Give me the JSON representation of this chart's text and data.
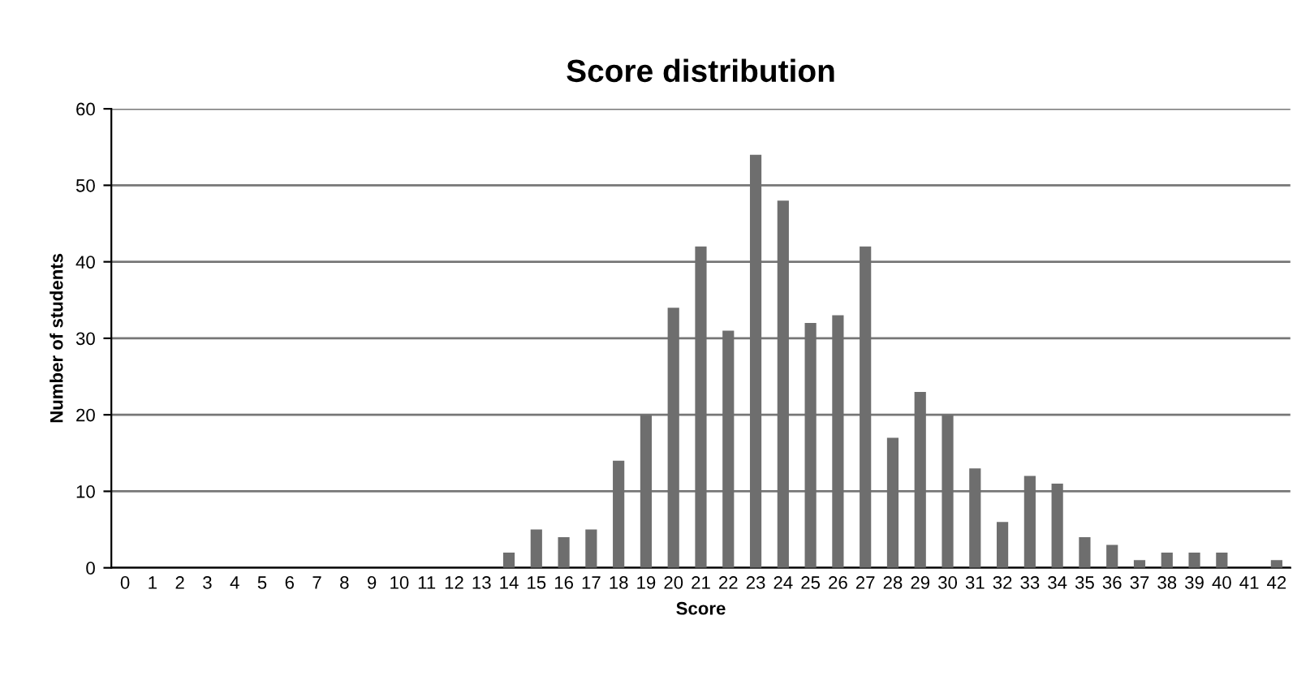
{
  "chart_data": {
    "type": "bar",
    "title": "Score distribution",
    "xlabel": "Score",
    "ylabel": "Number of students",
    "categories": [
      "0",
      "1",
      "2",
      "3",
      "4",
      "5",
      "6",
      "7",
      "8",
      "9",
      "10",
      "11",
      "12",
      "13",
      "14",
      "15",
      "16",
      "17",
      "18",
      "19",
      "20",
      "21",
      "22",
      "23",
      "24",
      "25",
      "26",
      "27",
      "28",
      "29",
      "30",
      "31",
      "32",
      "33",
      "34",
      "35",
      "36",
      "37",
      "38",
      "39",
      "40",
      "41",
      "42"
    ],
    "values": [
      0,
      0,
      0,
      0,
      0,
      0,
      0,
      0,
      0,
      0,
      0,
      0,
      0,
      0,
      2,
      5,
      4,
      5,
      14,
      20,
      34,
      42,
      31,
      54,
      48,
      32,
      33,
      42,
      17,
      23,
      20,
      13,
      6,
      12,
      11,
      4,
      3,
      1,
      2,
      2,
      2,
      0,
      1
    ],
    "color": "#6e6e6e",
    "ylim": [
      0,
      60
    ],
    "yticks": [
      0,
      10,
      20,
      30,
      40,
      50,
      60
    ],
    "grid": "y"
  }
}
